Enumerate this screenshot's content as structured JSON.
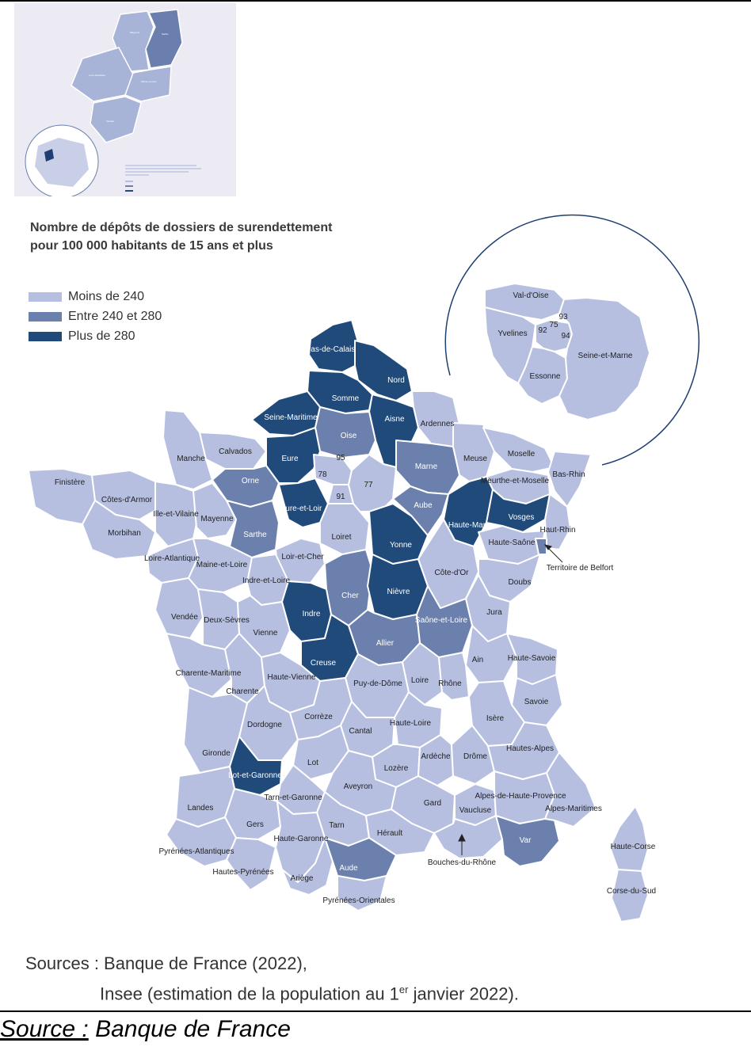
{
  "title_line1": "Nombre de dépôts de dossiers de surendettement",
  "title_line2": "pour 100 000 habitants de 15 ans et plus",
  "legend": [
    {
      "label": "Moins de 240",
      "color": "#b6bfe0"
    },
    {
      "label": "Entre 240 et 280",
      "color": "#6b80ad"
    },
    {
      "label": "Plus de 280",
      "color": "#1f4a7a"
    }
  ],
  "colors": {
    "low": "#b6bfe0",
    "mid": "#6b80ad",
    "high": "#1f4a7a",
    "border": "#ffffff"
  },
  "idf": {
    "val_oise": "Val-d'Oise",
    "yvelines": "Yvelines",
    "essonne": "Essonne",
    "seine_et_marne": "Seine-et-Marne",
    "n93": "93",
    "n75": "75",
    "n92": "92",
    "n94": "94"
  },
  "labels": {
    "pas_de_calais": "Pas-de-Calais",
    "nord": "Nord",
    "somme": "Somme",
    "aisne": "Aisne",
    "seine_maritime": "Seine-Maritime",
    "oise": "Oise",
    "ardennes": "Ardennes",
    "manche": "Manche",
    "calvados": "Calvados",
    "eure": "Eure",
    "marne": "Marne",
    "meuse": "Meuse",
    "moselle": "Moselle",
    "bas_rhin": "Bas-Rhin",
    "finistere": "Finistère",
    "cotes_d_armor": "Côtes-d'Armor",
    "ille_et_vilaine": "Ille-et-Vilaine",
    "orne": "Orne",
    "eure_et_loir": "Eure-et-Loir",
    "n78": "78",
    "n95": "95",
    "n91": "91",
    "n77": "77",
    "aube": "Aube",
    "meurthe_et_moselle": "Meurthe-et-Moselle",
    "vosges": "Vosges",
    "haut_rhin": "Haut-Rhin",
    "morbihan": "Morbihan",
    "mayenne": "Mayenne",
    "sarthe": "Sarthe",
    "loiret": "Loiret",
    "yonne": "Yonne",
    "haute_marne": "Haute-Marne",
    "haute_saone": "Haute-Saône",
    "territoire_de_belfort": "Territoire de Belfort",
    "loire_atlantique": "Loire-Atlantique",
    "maine_et_loire": "Maine-et-Loire",
    "loir_et_cher": "Loir-et-Cher",
    "indre_et_loire": "Indre-et-Loire",
    "cher": "Cher",
    "cote_d_or": "Côte-d'Or",
    "doubs": "Doubs",
    "vendee": "Vendée",
    "deux_sevres": "Deux-Sèvres",
    "vienne": "Vienne",
    "indre": "Indre",
    "nievre": "Nièvre",
    "jura": "Jura",
    "saone_et_loire": "Saône-et-Loire",
    "allier": "Allier",
    "creuse": "Creuse",
    "ain": "Ain",
    "haute_savoie": "Haute-Savoie",
    "charente_maritime": "Charente-Maritime",
    "charente": "Charente",
    "haute_vienne": "Haute-Vienne",
    "puy_de_dome": "Puy-de-Dôme",
    "loire": "Loire",
    "rhone": "Rhône",
    "savoie": "Savoie",
    "dordogne": "Dordogne",
    "correze": "Corrèze",
    "cantal": "Cantal",
    "haute_loire": "Haute-Loire",
    "isere": "Isère",
    "gironde": "Gironde",
    "lot": "Lot",
    "lozere": "Lozère",
    "ardeche": "Ardèche",
    "drome": "Drôme",
    "hautes_alpes": "Hautes-Alpes",
    "lot_et_garonne": "Lot-et-Garonne",
    "aveyron": "Aveyron",
    "landes": "Landes",
    "tarn_et_garonne": "Tarn-et-Garonne",
    "gard": "Gard",
    "vaucluse": "Vaucluse",
    "alpes_de_haute_provence": "Alpes-de-Haute-Provence",
    "alpes_maritimes": "Alpes-Maritimes",
    "gers": "Gers",
    "tarn": "Tarn",
    "herault": "Hérault",
    "haute_garonne": "Haute-Garonne",
    "var": "Var",
    "pyrenees_atlantiques": "Pyrénées-Atlantiques",
    "hautes_pyrenees": "Hautes-Pyrénées",
    "ariege": "Ariège",
    "aude": "Aude",
    "pyrenees_orientales": "Pyrénées-Orientales",
    "bouches_du_rhone": "Bouches-du-Rhône",
    "haute_corse": "Haute-Corse",
    "corse_du_sud": "Corse-du-Sud"
  },
  "sources_line1": "Sources : Banque de France (2022),",
  "sources_line2_a": "Insee (estimation de la population au 1",
  "sources_line2_sup": "er",
  "sources_line2_b": " janvier 2022).",
  "source_prefix": "Source :",
  "source_name": " Banque de France"
}
